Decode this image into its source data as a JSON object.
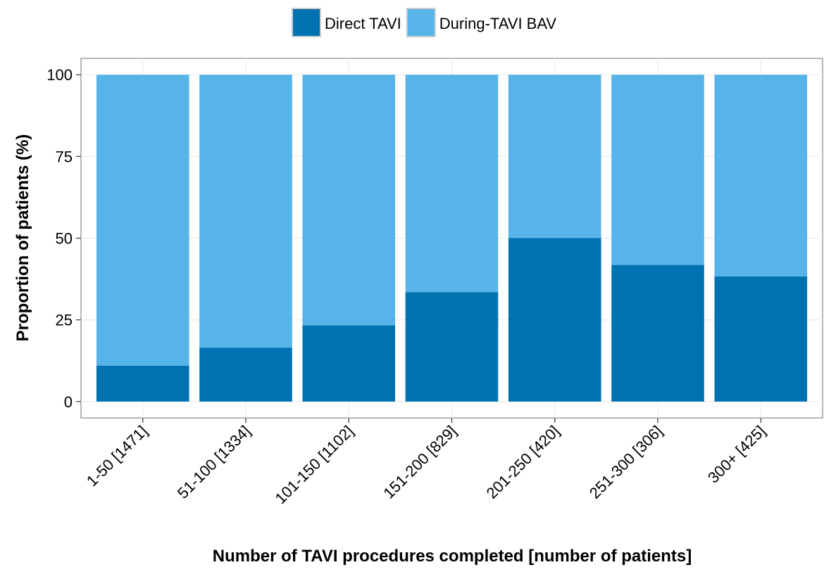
{
  "chart_data": {
    "type": "stacked_bar",
    "xlabel": "Number of TAVI procedures completed [number of patients]",
    "ylabel": "Proportion of patients (%)",
    "categories": [
      "1-50 [1471]",
      "51-100 [1334]",
      "101-150 [1102]",
      "151-200 [829]",
      "201-250 [420]",
      "251-300 [306]",
      "300+ [425]"
    ],
    "series": [
      {
        "name": "Direct TAVI",
        "color": "#0072b2",
        "values": [
          11,
          16.5,
          23.3,
          33.5,
          50,
          41.8,
          38.3
        ]
      },
      {
        "name": "During-TAVI BAV",
        "color": "#56b4e9",
        "values": [
          89,
          83.5,
          76.7,
          66.5,
          50,
          58.2,
          61.7
        ]
      }
    ],
    "ylim": [
      -5,
      105
    ],
    "yticks": [
      0,
      25,
      50,
      75,
      100
    ],
    "grid": true,
    "legend": "top"
  }
}
